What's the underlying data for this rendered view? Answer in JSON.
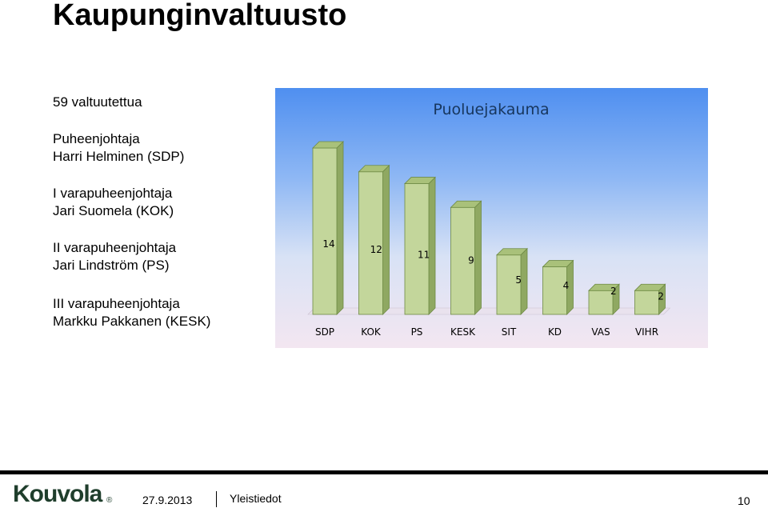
{
  "slide": {
    "title": "Kaupunginvaltuusto",
    "info": [
      {
        "lines": [
          "59 valtuutettua"
        ]
      },
      {
        "lines": [
          "Puheenjohtaja",
          "Harri Helminen (SDP)"
        ]
      },
      {
        "lines": [
          "I varapuheenjohtaja",
          "Jari Suomela (KOK)"
        ]
      },
      {
        "lines": [
          "II varapuheenjohtaja",
          "Jari Lindström (PS)"
        ]
      },
      {
        "lines": [
          "III  varapuheenjohtaja",
          "Markku Pakkanen (KESK)"
        ]
      }
    ]
  },
  "chart_data": {
    "type": "bar",
    "title": "Puoluejakauma",
    "categories": [
      "SDP",
      "KOK",
      "PS",
      "KESK",
      "SIT",
      "KD",
      "VAS",
      "VIHR"
    ],
    "values": [
      14,
      12,
      11,
      9,
      5,
      4,
      2,
      2
    ],
    "data_labels": [
      "14",
      "12",
      "11",
      "9",
      "5",
      "4",
      "2",
      "2"
    ],
    "style": "3d-column",
    "colors": {
      "bar_front": "#c3d69b",
      "bar_side": "#8fa862",
      "bar_top": "#a9c17a",
      "bar_edge": "#6e8a45",
      "title": "#17365d"
    },
    "ylim": [
      0,
      14
    ],
    "grid": false,
    "legend": "none"
  },
  "footer": {
    "logo_text": "Kouvola",
    "logo_reg": "®",
    "date": "27.9.2013",
    "section": "Yleistiedot",
    "page": "10"
  }
}
